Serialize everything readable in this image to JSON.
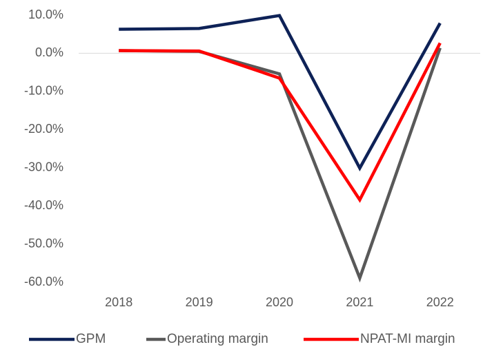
{
  "chart_data": {
    "type": "line",
    "categories": [
      "2018",
      "2019",
      "2020",
      "2021",
      "2022"
    ],
    "series": [
      {
        "name": "GPM",
        "color": "#0e2257",
        "values": [
          6.3,
          6.5,
          9.9,
          -30.1,
          7.9
        ]
      },
      {
        "name": "Operating margin",
        "color": "#595959",
        "values": [
          0.7,
          0.5,
          -5.4,
          -58.9,
          1.4
        ]
      },
      {
        "name": "NPAT-MI margin",
        "color": "#ff0000",
        "values": [
          0.7,
          0.6,
          -6.5,
          -38.4,
          2.7
        ]
      }
    ],
    "ylim": [
      -60,
      10
    ],
    "yticks": [
      {
        "value": -60,
        "label": "-60.0%"
      },
      {
        "value": -50,
        "label": "-50.0%"
      },
      {
        "value": -40,
        "label": "-40.0%"
      },
      {
        "value": -30,
        "label": "-30.0%"
      },
      {
        "value": -20,
        "label": "-20.0%"
      },
      {
        "value": -10,
        "label": "-10.0%"
      },
      {
        "value": 0,
        "label": "0.0%"
      },
      {
        "value": 10,
        "label": "10.0%"
      }
    ],
    "grid": false,
    "legend": "bottom"
  }
}
